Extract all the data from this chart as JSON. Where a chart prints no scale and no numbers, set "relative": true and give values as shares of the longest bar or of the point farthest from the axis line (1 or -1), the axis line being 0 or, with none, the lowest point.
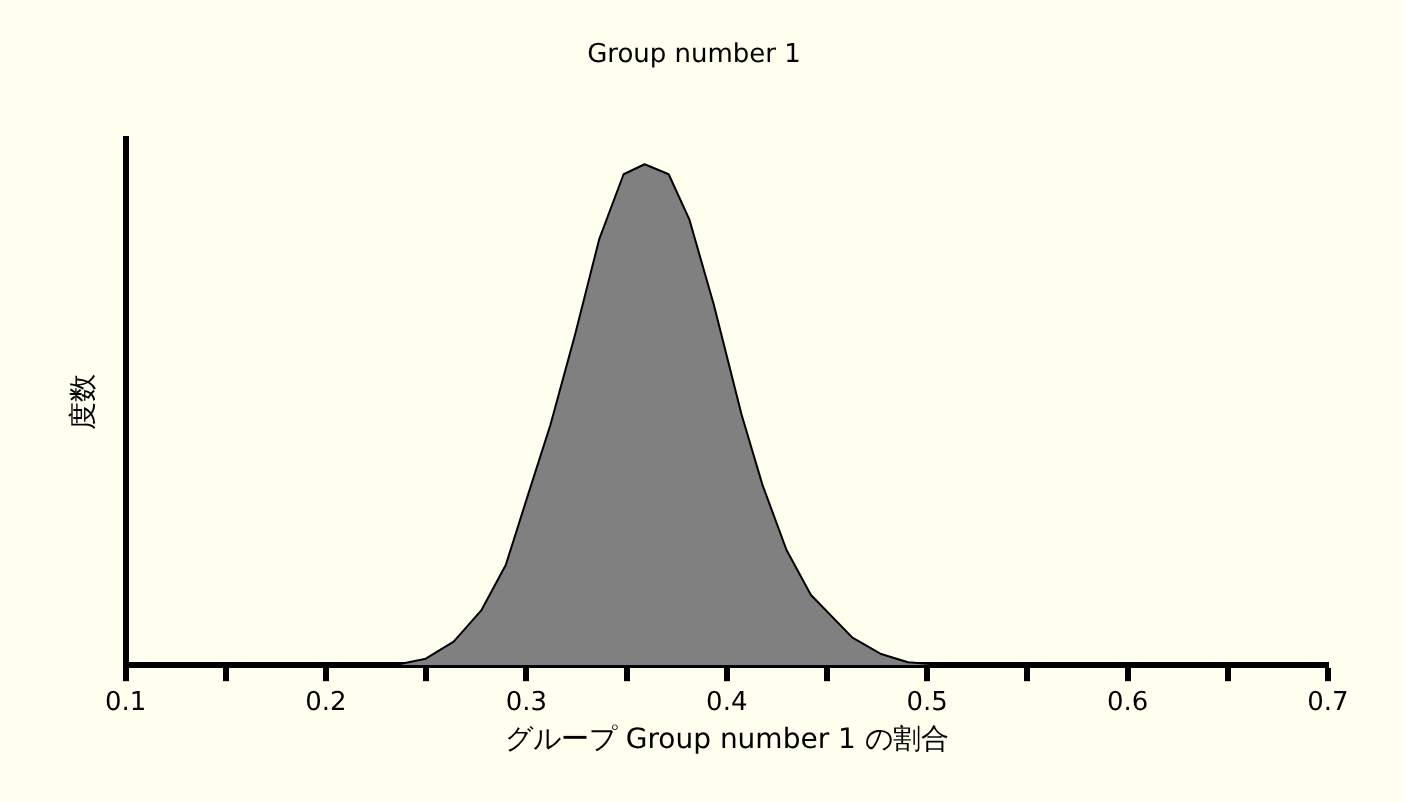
{
  "chart_data": {
    "type": "area",
    "title": "Group number 1",
    "xlabel": "グループ Group number 1 の割合",
    "ylabel": "度数",
    "relative": true,
    "xlim": [
      0.1,
      0.7
    ],
    "xticks": [
      0.1,
      {
        "value": 0.15,
        "label": null
      },
      0.2,
      {
        "value": 0.25,
        "label": null
      },
      0.3,
      {
        "value": 0.35,
        "label": null
      },
      0.4,
      {
        "value": 0.45,
        "label": null
      },
      0.5,
      {
        "value": 0.55,
        "label": null
      },
      0.6,
      {
        "value": 0.65,
        "label": null
      },
      0.7
    ],
    "grid": false,
    "legend": false,
    "marker": "none",
    "line_style": "solid",
    "series": [
      {
        "color": "#808080",
        "x": [
          0.234,
          0.2498,
          0.2637,
          0.2776,
          0.2897,
          0.3,
          0.312,
          0.3243,
          0.3363,
          0.3485,
          0.359,
          0.371,
          0.3813,
          0.3935,
          0.4074,
          0.4178,
          0.4298,
          0.442,
          0.4627,
          0.4766,
          0.4904,
          0.5095
        ],
        "values": [
          0,
          0.013,
          0.047,
          0.11,
          0.2,
          0.33,
          0.48,
          0.66,
          0.85,
          0.98,
          1,
          0.98,
          0.89,
          0.72,
          0.5,
          0.36,
          0.23,
          0.14,
          0.055,
          0.023,
          0.006,
          0
        ]
      }
    ]
  }
}
